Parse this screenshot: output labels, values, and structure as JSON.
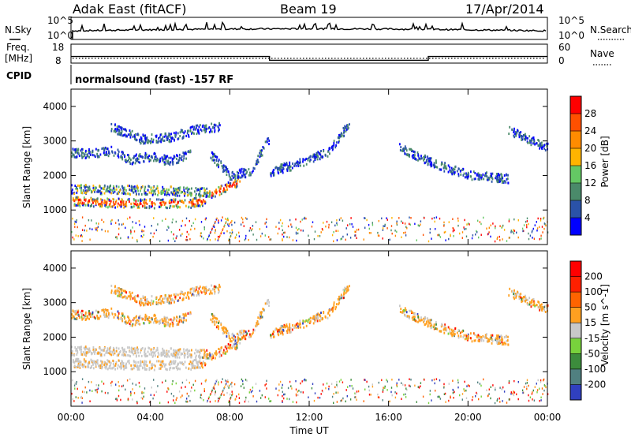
{
  "header": {
    "site_title": "Adak East (fitACF)",
    "beam": "Beam 19",
    "date": "17/Apr/2014"
  },
  "noise_panel": {
    "left_label": "N.Sky",
    "right_label": "N.Search",
    "left_ticks": [
      "10^5",
      "10^0"
    ],
    "right_ticks": [
      "10^5",
      "10^0"
    ]
  },
  "freq_panel": {
    "left_label_1": "Freq.",
    "left_label_2": "[MHz]",
    "right_label": "Nave",
    "left_ticks": [
      "18",
      "8"
    ],
    "right_ticks": [
      "60",
      "0"
    ]
  },
  "cpid_panel": {
    "label": "CPID",
    "program": "normalsound (fast) -157 RF"
  },
  "colors": {
    "power": [
      "#0000ff",
      "#2a52a8",
      "#4a8a6a",
      "#64c864",
      "#ffb400",
      "#ff8c00",
      "#ff5000",
      "#ff0000"
    ],
    "velocity": [
      "#3040c0",
      "#508080",
      "#3c8c3c",
      "#78d23c",
      "#c8c8c8",
      "#ffa020",
      "#ff6400",
      "#ff2000",
      "#ff0000"
    ]
  },
  "chart_data": [
    {
      "type": "heatmap",
      "title": "",
      "xlabel": "",
      "ylabel": "Slant Range [km]",
      "xlim": [
        "00:00",
        "00:00"
      ],
      "ylim": [
        0,
        4500
      ],
      "yticks": [
        "1000",
        "2000",
        "3000",
        "4000"
      ],
      "colorbar": {
        "label": "Power [dB]",
        "ticks": [
          "4",
          "8",
          "12",
          "16",
          "20",
          "24",
          "28"
        ]
      },
      "bands": [
        {
          "name": "",
          "x_hours": [
            0.0,
            2.0,
            4.0,
            6.0,
            6.6,
            7.0,
            8.0,
            8.5
          ],
          "y_km": [
            1250,
            1200,
            1180,
            1190,
            1250,
            1450,
            1700,
            1800
          ]
        },
        {
          "name": "",
          "x_hours": [
            0.0,
            2.0,
            4.0,
            5.5,
            7.0
          ],
          "y_km": [
            1600,
            1580,
            1560,
            1540,
            1500
          ]
        },
        {
          "name": "",
          "x_hours": [
            0.0,
            1.0,
            2.0,
            3.0,
            4.0,
            5.0,
            6.0
          ],
          "y_km": [
            2650,
            2620,
            2700,
            2450,
            2550,
            2400,
            2650
          ]
        },
        {
          "name": "",
          "x_hours": [
            2.0,
            3.5,
            5.0,
            6.5,
            7.5
          ],
          "y_km": [
            3400,
            3050,
            3100,
            3350,
            3400
          ]
        },
        {
          "name": "",
          "x_hours": [
            7.0,
            8.0,
            9.0,
            10.0
          ],
          "y_km": [
            2600,
            2000,
            2100,
            3100
          ]
        },
        {
          "name": "",
          "x_hours": [
            10.0,
            11.5,
            13.0,
            14.0
          ],
          "y_km": [
            2100,
            2350,
            2700,
            3500
          ]
        },
        {
          "name": "",
          "x_hours": [
            16.5,
            18.0,
            20.0,
            22.0
          ],
          "y_km": [
            2800,
            2400,
            2000,
            1900
          ]
        },
        {
          "name": "",
          "x_hours": [
            22.0,
            23.2,
            24.0
          ],
          "y_km": [
            3300,
            3000,
            2800
          ]
        }
      ]
    },
    {
      "type": "heatmap",
      "title": "",
      "xlabel": "Time UT",
      "ylabel": "Slant Range [km]",
      "xlim": [
        "00:00",
        "00:00"
      ],
      "ylim": [
        0,
        4500
      ],
      "xticks": [
        "00:00",
        "04:00",
        "08:00",
        "12:00",
        "16:00",
        "20:00",
        "00:00"
      ],
      "yticks": [
        "1000",
        "2000",
        "3000",
        "4000"
      ],
      "colorbar": {
        "label": "Velocity [m s^-1]",
        "ticks": [
          "200",
          "100",
          "50",
          "15",
          "-15",
          "-50",
          "-100",
          "-200"
        ]
      }
    }
  ],
  "freq_series": {
    "x_hours": [
      0,
      10,
      10,
      18,
      18,
      24
    ],
    "freq_mhz": [
      11.5,
      11.5,
      9.5,
      9.5,
      11.5,
      11.5
    ],
    "nave": [
      0,
      0,
      0,
      0,
      0,
      0
    ]
  }
}
